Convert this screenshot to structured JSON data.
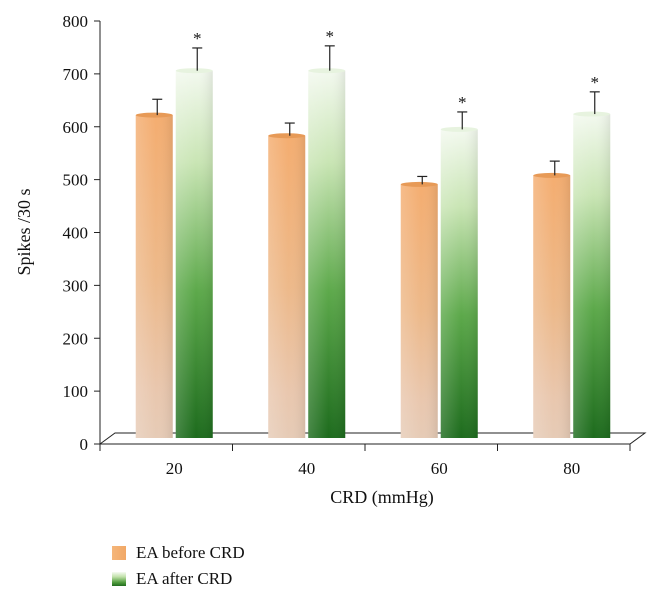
{
  "chart_data": {
    "type": "bar",
    "title": "",
    "xlabel": "CRD (mmHg)",
    "ylabel": "Spikes /30 s",
    "ylim": [
      0,
      800
    ],
    "yticks": [
      0,
      100,
      200,
      300,
      400,
      500,
      600,
      700,
      800
    ],
    "categories": [
      "20",
      "40",
      "60",
      "80"
    ],
    "series": [
      {
        "name": "EA before CRD",
        "color": "#f2ab6b",
        "values": [
          622,
          583,
          491,
          508
        ],
        "errors": [
          30,
          24,
          15,
          27
        ],
        "significance": [
          "",
          "",
          "",
          ""
        ]
      },
      {
        "name": "EA after CRD",
        "color": "#3f8f32",
        "values": [
          706,
          706,
          595,
          624
        ],
        "errors": [
          43,
          47,
          33,
          42
        ],
        "significance": [
          "*",
          "*",
          "*",
          "*"
        ]
      }
    ],
    "legend_position": "bottom-left"
  }
}
